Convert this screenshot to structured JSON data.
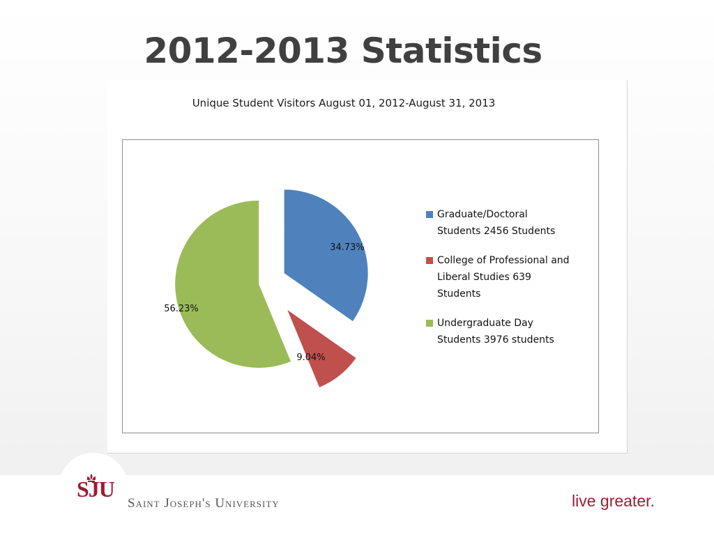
{
  "slide": {
    "title": "2012-2013 Statistics"
  },
  "chart_data": {
    "type": "pie",
    "title": "Unique Student Visitors August 01, 2012-August 31, 2013",
    "slices": [
      {
        "legend": "Graduate/Doctoral Students 2456 Students",
        "legend_lines": [
          "Graduate/Doctoral",
          "Students 2456 Students"
        ],
        "label": "34.73%",
        "percent": 34.73,
        "count": 2456,
        "color": "#4f81bd"
      },
      {
        "legend": "College of Professional and Liberal Studies 639 Students",
        "legend_lines": [
          "College of Professional and",
          "Liberal Studies 639",
          "Students"
        ],
        "label": "9.04%",
        "percent": 9.04,
        "count": 639,
        "color": "#c0504d"
      },
      {
        "legend": "Undergraduate Day Students 3976 students",
        "legend_lines": [
          "Undergraduate Day",
          "Students 3976 students"
        ],
        "label": "56.23%",
        "percent": 56.23,
        "count": 3976,
        "color": "#9bbb59"
      }
    ],
    "start_angle": "12 o'clock, clockwise",
    "exploded": true,
    "legend_position": "right"
  },
  "footer": {
    "logo_text": "SJU",
    "university": "Saint Joseph's University",
    "tagline": "live greater."
  },
  "colors": {
    "brand": "#9e1b32",
    "title": "#404040"
  }
}
